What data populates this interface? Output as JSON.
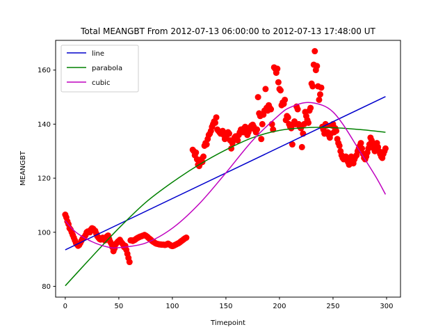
{
  "chart_data": {
    "type": "scatter",
    "title": "Total MEANGBT From 2012-07-13 06:00:00 to 2012-07-13 17:48:00 UT",
    "xlabel": "Timepoint",
    "ylabel": "MEANGBT",
    "xlim": [
      -9,
      313
    ],
    "ylim": [
      76,
      171
    ],
    "xticks": [
      0,
      50,
      100,
      150,
      200,
      250,
      300
    ],
    "yticks": [
      80,
      100,
      120,
      140,
      160
    ],
    "grid": false,
    "legend_position": "top-left",
    "scatter": {
      "color": "#ff0000",
      "points": [
        [
          0,
          106.5
        ],
        [
          1,
          105.5
        ],
        [
          2,
          104.0
        ],
        [
          3,
          103.0
        ],
        [
          4,
          101.5
        ],
        [
          5,
          101.0
        ],
        [
          6,
          100.0
        ],
        [
          7,
          99.0
        ],
        [
          8,
          98.0
        ],
        [
          9,
          97.0
        ],
        [
          10,
          96.0
        ],
        [
          11,
          95.5
        ],
        [
          12,
          95.0
        ],
        [
          13,
          95.3
        ],
        [
          14,
          96.0
        ],
        [
          15,
          96.8
        ],
        [
          16,
          97.5
        ],
        [
          17,
          98.0
        ],
        [
          18,
          98.3
        ],
        [
          19,
          99.0
        ],
        [
          20,
          100.0
        ],
        [
          21,
          100.3
        ],
        [
          22,
          100.2
        ],
        [
          23,
          100.0
        ],
        [
          24,
          101.0
        ],
        [
          25,
          101.5
        ],
        [
          26,
          101.3
        ],
        [
          27,
          100.8
        ],
        [
          28,
          100.5
        ],
        [
          29,
          99.5
        ],
        [
          30,
          98.5
        ],
        [
          31,
          98.0
        ],
        [
          32,
          97.5
        ],
        [
          33,
          97.3
        ],
        [
          34,
          97.8
        ],
        [
          35,
          98.0
        ],
        [
          36,
          97.5
        ],
        [
          37,
          97.0
        ],
        [
          38,
          98.0
        ],
        [
          39,
          98.5
        ],
        [
          40,
          98.8
        ],
        [
          41,
          97.5
        ],
        [
          42,
          96.5
        ],
        [
          43,
          95.8
        ],
        [
          44,
          94.5
        ],
        [
          45,
          93.0
        ],
        [
          46,
          94.0
        ],
        [
          47,
          95.5
        ],
        [
          48,
          96.0
        ],
        [
          49,
          96.5
        ],
        [
          50,
          96.8
        ],
        [
          51,
          97.2
        ],
        [
          52,
          96.5
        ],
        [
          53,
          96.0
        ],
        [
          54,
          95.5
        ],
        [
          55,
          94.5
        ],
        [
          56,
          95.0
        ],
        [
          57,
          93.5
        ],
        [
          58,
          92.0
        ],
        [
          59,
          90.5
        ],
        [
          60,
          89.0
        ],
        [
          61,
          97.0
        ],
        [
          62,
          97.0
        ],
        [
          63,
          96.8
        ],
        [
          64,
          97.0
        ],
        [
          65,
          97.2
        ],
        [
          66,
          97.5
        ],
        [
          67,
          97.8
        ],
        [
          68,
          98.0
        ],
        [
          69,
          98.2
        ],
        [
          70,
          98.4
        ],
        [
          71,
          98.5
        ],
        [
          72,
          98.7
        ],
        [
          73,
          98.8
        ],
        [
          74,
          99.0
        ],
        [
          75,
          98.8
        ],
        [
          76,
          98.5
        ],
        [
          77,
          98.2
        ],
        [
          78,
          97.8
        ],
        [
          79,
          97.5
        ],
        [
          80,
          97.2
        ],
        [
          81,
          96.8
        ],
        [
          82,
          96.5
        ],
        [
          83,
          96.3
        ],
        [
          84,
          96.0
        ],
        [
          85,
          95.8
        ],
        [
          86,
          95.7
        ],
        [
          87,
          95.6
        ],
        [
          88,
          95.5
        ],
        [
          89,
          95.5
        ],
        [
          90,
          95.4
        ],
        [
          91,
          95.4
        ],
        [
          92,
          95.4
        ],
        [
          93,
          95.3
        ],
        [
          94,
          95.4
        ],
        [
          95,
          95.6
        ],
        [
          96,
          95.8
        ],
        [
          97,
          95.5
        ],
        [
          98,
          95.3
        ],
        [
          99,
          95.0
        ],
        [
          100,
          94.9
        ],
        [
          101,
          95.0
        ],
        [
          102,
          95.2
        ],
        [
          103,
          95.4
        ],
        [
          104,
          95.6
        ],
        [
          105,
          95.8
        ],
        [
          106,
          96.0
        ],
        [
          107,
          96.3
        ],
        [
          108,
          96.6
        ],
        [
          109,
          96.9
        ],
        [
          110,
          97.2
        ],
        [
          111,
          97.5
        ],
        [
          112,
          97.8
        ],
        [
          113,
          98.0
        ],
        [
          119,
          130.5
        ],
        [
          120,
          130.0
        ],
        [
          121,
          128.5
        ],
        [
          122,
          129.5
        ],
        [
          123,
          127.0
        ],
        [
          124,
          125.0
        ],
        [
          125,
          124.5
        ],
        [
          126,
          125.5
        ],
        [
          127,
          127.0
        ],
        [
          128,
          126.0
        ],
        [
          129,
          128.0
        ],
        [
          130,
          132.0
        ],
        [
          131,
          133.0
        ],
        [
          132,
          132.5
        ],
        [
          133,
          134.5
        ],
        [
          134,
          136.0
        ],
        [
          135,
          136.5
        ],
        [
          136,
          137.5
        ],
        [
          137,
          139.0
        ],
        [
          138,
          140.0
        ],
        [
          139,
          141.0
        ],
        [
          140,
          140.5
        ],
        [
          141,
          142.5
        ],
        [
          142,
          138.0
        ],
        [
          143,
          137.5
        ],
        [
          144,
          137.0
        ],
        [
          145,
          136.5
        ],
        [
          146,
          137.0
        ],
        [
          147,
          137.5
        ],
        [
          148,
          136.0
        ],
        [
          149,
          134.5
        ],
        [
          150,
          135.0
        ],
        [
          151,
          136.0
        ],
        [
          152,
          137.0
        ],
        [
          153,
          136.5
        ],
        [
          154,
          134.0
        ],
        [
          155,
          131.0
        ],
        [
          156,
          133.0
        ],
        [
          157,
          134.0
        ],
        [
          158,
          135.0
        ],
        [
          159,
          135.5
        ],
        [
          160,
          135.0
        ],
        [
          161,
          134.0
        ],
        [
          162,
          136.0
        ],
        [
          163,
          137.0
        ],
        [
          164,
          138.0
        ],
        [
          165,
          137.5
        ],
        [
          166,
          137.0
        ],
        [
          167,
          138.5
        ],
        [
          168,
          139.0
        ],
        [
          169,
          138.0
        ],
        [
          170,
          136.0
        ],
        [
          171,
          137.0
        ],
        [
          172,
          138.0
        ],
        [
          173,
          139.0
        ],
        [
          174,
          139.5
        ],
        [
          175,
          139.8
        ],
        [
          176,
          139.0
        ],
        [
          177,
          138.0
        ],
        [
          178,
          137.0
        ],
        [
          179,
          138.0
        ],
        [
          180,
          150.0
        ],
        [
          181,
          144.0
        ],
        [
          182,
          143.0
        ],
        [
          183,
          134.5
        ],
        [
          184,
          140.0
        ],
        [
          185,
          143.5
        ],
        [
          186,
          145.0
        ],
        [
          187,
          153.0
        ],
        [
          188,
          146.0
        ],
        [
          189,
          145.0
        ],
        [
          190,
          147.0
        ],
        [
          191,
          146.0
        ],
        [
          192,
          145.5
        ],
        [
          193,
          140.0
        ],
        [
          194,
          138.0
        ],
        [
          195,
          161.0
        ],
        [
          196,
          160.5
        ],
        [
          197,
          159.0
        ],
        [
          198,
          160.5
        ],
        [
          199,
          155.5
        ],
        [
          200,
          153.0
        ],
        [
          201,
          152.5
        ],
        [
          202,
          147.0
        ],
        [
          203,
          148.0
        ],
        [
          204,
          147.5
        ],
        [
          205,
          149.0
        ],
        [
          206,
          141.5
        ],
        [
          207,
          143.0
        ],
        [
          208,
          142.5
        ],
        [
          209,
          140.0
        ],
        [
          210,
          139.0
        ],
        [
          211,
          138.5
        ],
        [
          212,
          132.5
        ],
        [
          213,
          140.0
        ],
        [
          214,
          141.0
        ],
        [
          215,
          140.0
        ],
        [
          216,
          146.5
        ],
        [
          217,
          145.5
        ],
        [
          218,
          140.0
        ],
        [
          219,
          139.0
        ],
        [
          220,
          138.5
        ],
        [
          221,
          131.5
        ],
        [
          222,
          136.5
        ],
        [
          223,
          140.0
        ],
        [
          224,
          144.5
        ],
        [
          225,
          143.0
        ],
        [
          226,
          141.5
        ],
        [
          227,
          140.5
        ],
        [
          228,
          145.0
        ],
        [
          229,
          146.0
        ],
        [
          230,
          155.0
        ],
        [
          231,
          154.0
        ],
        [
          232,
          162.0
        ],
        [
          233,
          167.0
        ],
        [
          234,
          160.0
        ],
        [
          235,
          161.5
        ],
        [
          236,
          154.0
        ],
        [
          237,
          149.0
        ],
        [
          238,
          151.0
        ],
        [
          239,
          153.5
        ],
        [
          240,
          139.0
        ],
        [
          241,
          138.0
        ],
        [
          242,
          136.5
        ],
        [
          243,
          140.0
        ],
        [
          244,
          139.5
        ],
        [
          245,
          137.0
        ],
        [
          246,
          136.0
        ],
        [
          247,
          135.0
        ],
        [
          248,
          136.5
        ],
        [
          249,
          139.5
        ],
        [
          250,
          140.0
        ],
        [
          251,
          137.0
        ],
        [
          252,
          138.5
        ],
        [
          253,
          137.5
        ],
        [
          254,
          134.5
        ],
        [
          255,
          133.0
        ],
        [
          256,
          132.0
        ],
        [
          257,
          130.0
        ],
        [
          258,
          128.5
        ],
        [
          259,
          127.5
        ],
        [
          260,
          127.0
        ],
        [
          261,
          127.5
        ],
        [
          262,
          128.0
        ],
        [
          263,
          127.0
        ],
        [
          264,
          126.0
        ],
        [
          265,
          125.0
        ],
        [
          266,
          127.0
        ],
        [
          267,
          128.0
        ],
        [
          268,
          126.5
        ],
        [
          269,
          125.5
        ],
        [
          270,
          127.0
        ],
        [
          271,
          128.0
        ],
        [
          272,
          128.5
        ],
        [
          273,
          130.0
        ],
        [
          274,
          131.0
        ],
        [
          275,
          132.0
        ],
        [
          276,
          133.0
        ],
        [
          277,
          131.0
        ],
        [
          278,
          129.0
        ],
        [
          279,
          127.5
        ],
        [
          280,
          127.0
        ],
        [
          281,
          128.0
        ],
        [
          282,
          129.5
        ],
        [
          283,
          131.0
        ],
        [
          284,
          132.5
        ],
        [
          285,
          135.0
        ],
        [
          286,
          134.0
        ],
        [
          287,
          133.0
        ],
        [
          288,
          131.0
        ],
        [
          289,
          130.0
        ],
        [
          290,
          132.0
        ],
        [
          291,
          133.0
        ],
        [
          292,
          131.5
        ],
        [
          293,
          130.0
        ],
        [
          294,
          129.0
        ],
        [
          295,
          128.0
        ],
        [
          296,
          127.5
        ],
        [
          297,
          129.0
        ],
        [
          298,
          130.0
        ],
        [
          299,
          131.0
        ]
      ]
    },
    "series": [
      {
        "name": "line",
        "color": "#0000cc",
        "x": [
          0,
          299
        ],
        "y": [
          93.5,
          150.2
        ]
      },
      {
        "name": "parabola",
        "color": "#008000",
        "x": [
          0,
          25,
          50,
          75,
          100,
          125,
          150,
          175,
          200,
          225,
          250,
          275,
          299
        ],
        "y": [
          80.2,
          91.0,
          101.5,
          111.0,
          118.5,
          125.0,
          130.5,
          135.0,
          137.7,
          138.7,
          138.7,
          138.0,
          137.0
        ]
      },
      {
        "name": "cubic",
        "color": "#bf00bf",
        "x": [
          0,
          10,
          25,
          40,
          50,
          75,
          100,
          125,
          150,
          175,
          200,
          210,
          225,
          240,
          250,
          260,
          275,
          290,
          299
        ],
        "y": [
          104.2,
          100.0,
          96.5,
          94.5,
          94.3,
          96.0,
          101.5,
          110.5,
          122.0,
          134.0,
          143.5,
          146.2,
          148.0,
          147.0,
          144.5,
          139.5,
          130.0,
          120.5,
          114.0
        ]
      }
    ]
  }
}
